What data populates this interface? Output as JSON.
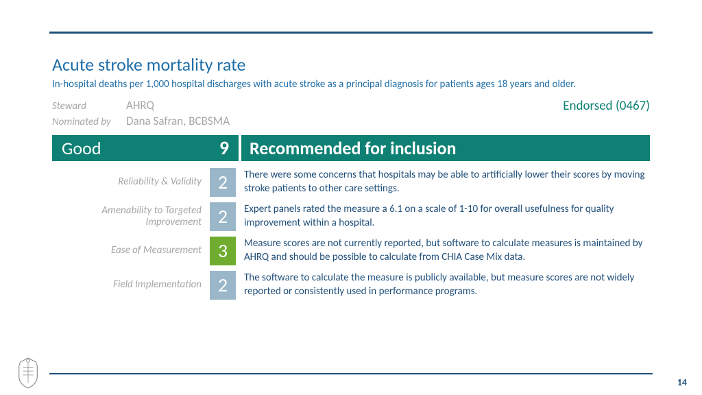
{
  "title": "Acute stroke mortality rate",
  "subtitle": "In-hospital deaths per 1,000 hospital discharges with acute stroke as a principal diagnosis for patients ages 18 years and older.",
  "steward": {
    "label": "Steward",
    "value": "AHRQ"
  },
  "nominated": {
    "label": "Nominated by",
    "value": "Dana Safran, BCBSMA"
  },
  "endorsed": "Endorsed (0467)",
  "header": {
    "rating": "Good",
    "total_score": "9",
    "recommendation": "Recommended for inclusion"
  },
  "score_colors": {
    "low": "#9ab7c9",
    "high": "#6fac2f"
  },
  "criteria": [
    {
      "label": "Reliability & Validity",
      "score": "2",
      "color_key": "low",
      "text": "There were some concerns that hospitals may be able to artificially lower their scores by moving stroke patients to other care settings."
    },
    {
      "label": "Amenability to Targeted Improvement",
      "score": "2",
      "color_key": "low",
      "text": "Expert panels rated the measure a 6.1 on a scale of 1-10 for overall usefulness for quality improvement within a hospital."
    },
    {
      "label": "Ease of Measurement",
      "score": "3",
      "color_key": "high",
      "text": "Measure scores are not currently reported, but software to calculate measures is maintained by AHRQ and should be possible to calculate from CHIA Case Mix data."
    },
    {
      "label": "Field Implementation",
      "score": "2",
      "color_key": "low",
      "text": "The software to calculate the measure is publicly available, but measure scores are not widely reported or consistently used in performance programs."
    }
  ],
  "page_number": "14",
  "theme": {
    "rule_color": "#1f4e79",
    "header_bg": "#0e8074",
    "title_color": "#1f6ea8",
    "body_text_color": "#1f4e79",
    "muted_color": "#a6a6a6"
  }
}
